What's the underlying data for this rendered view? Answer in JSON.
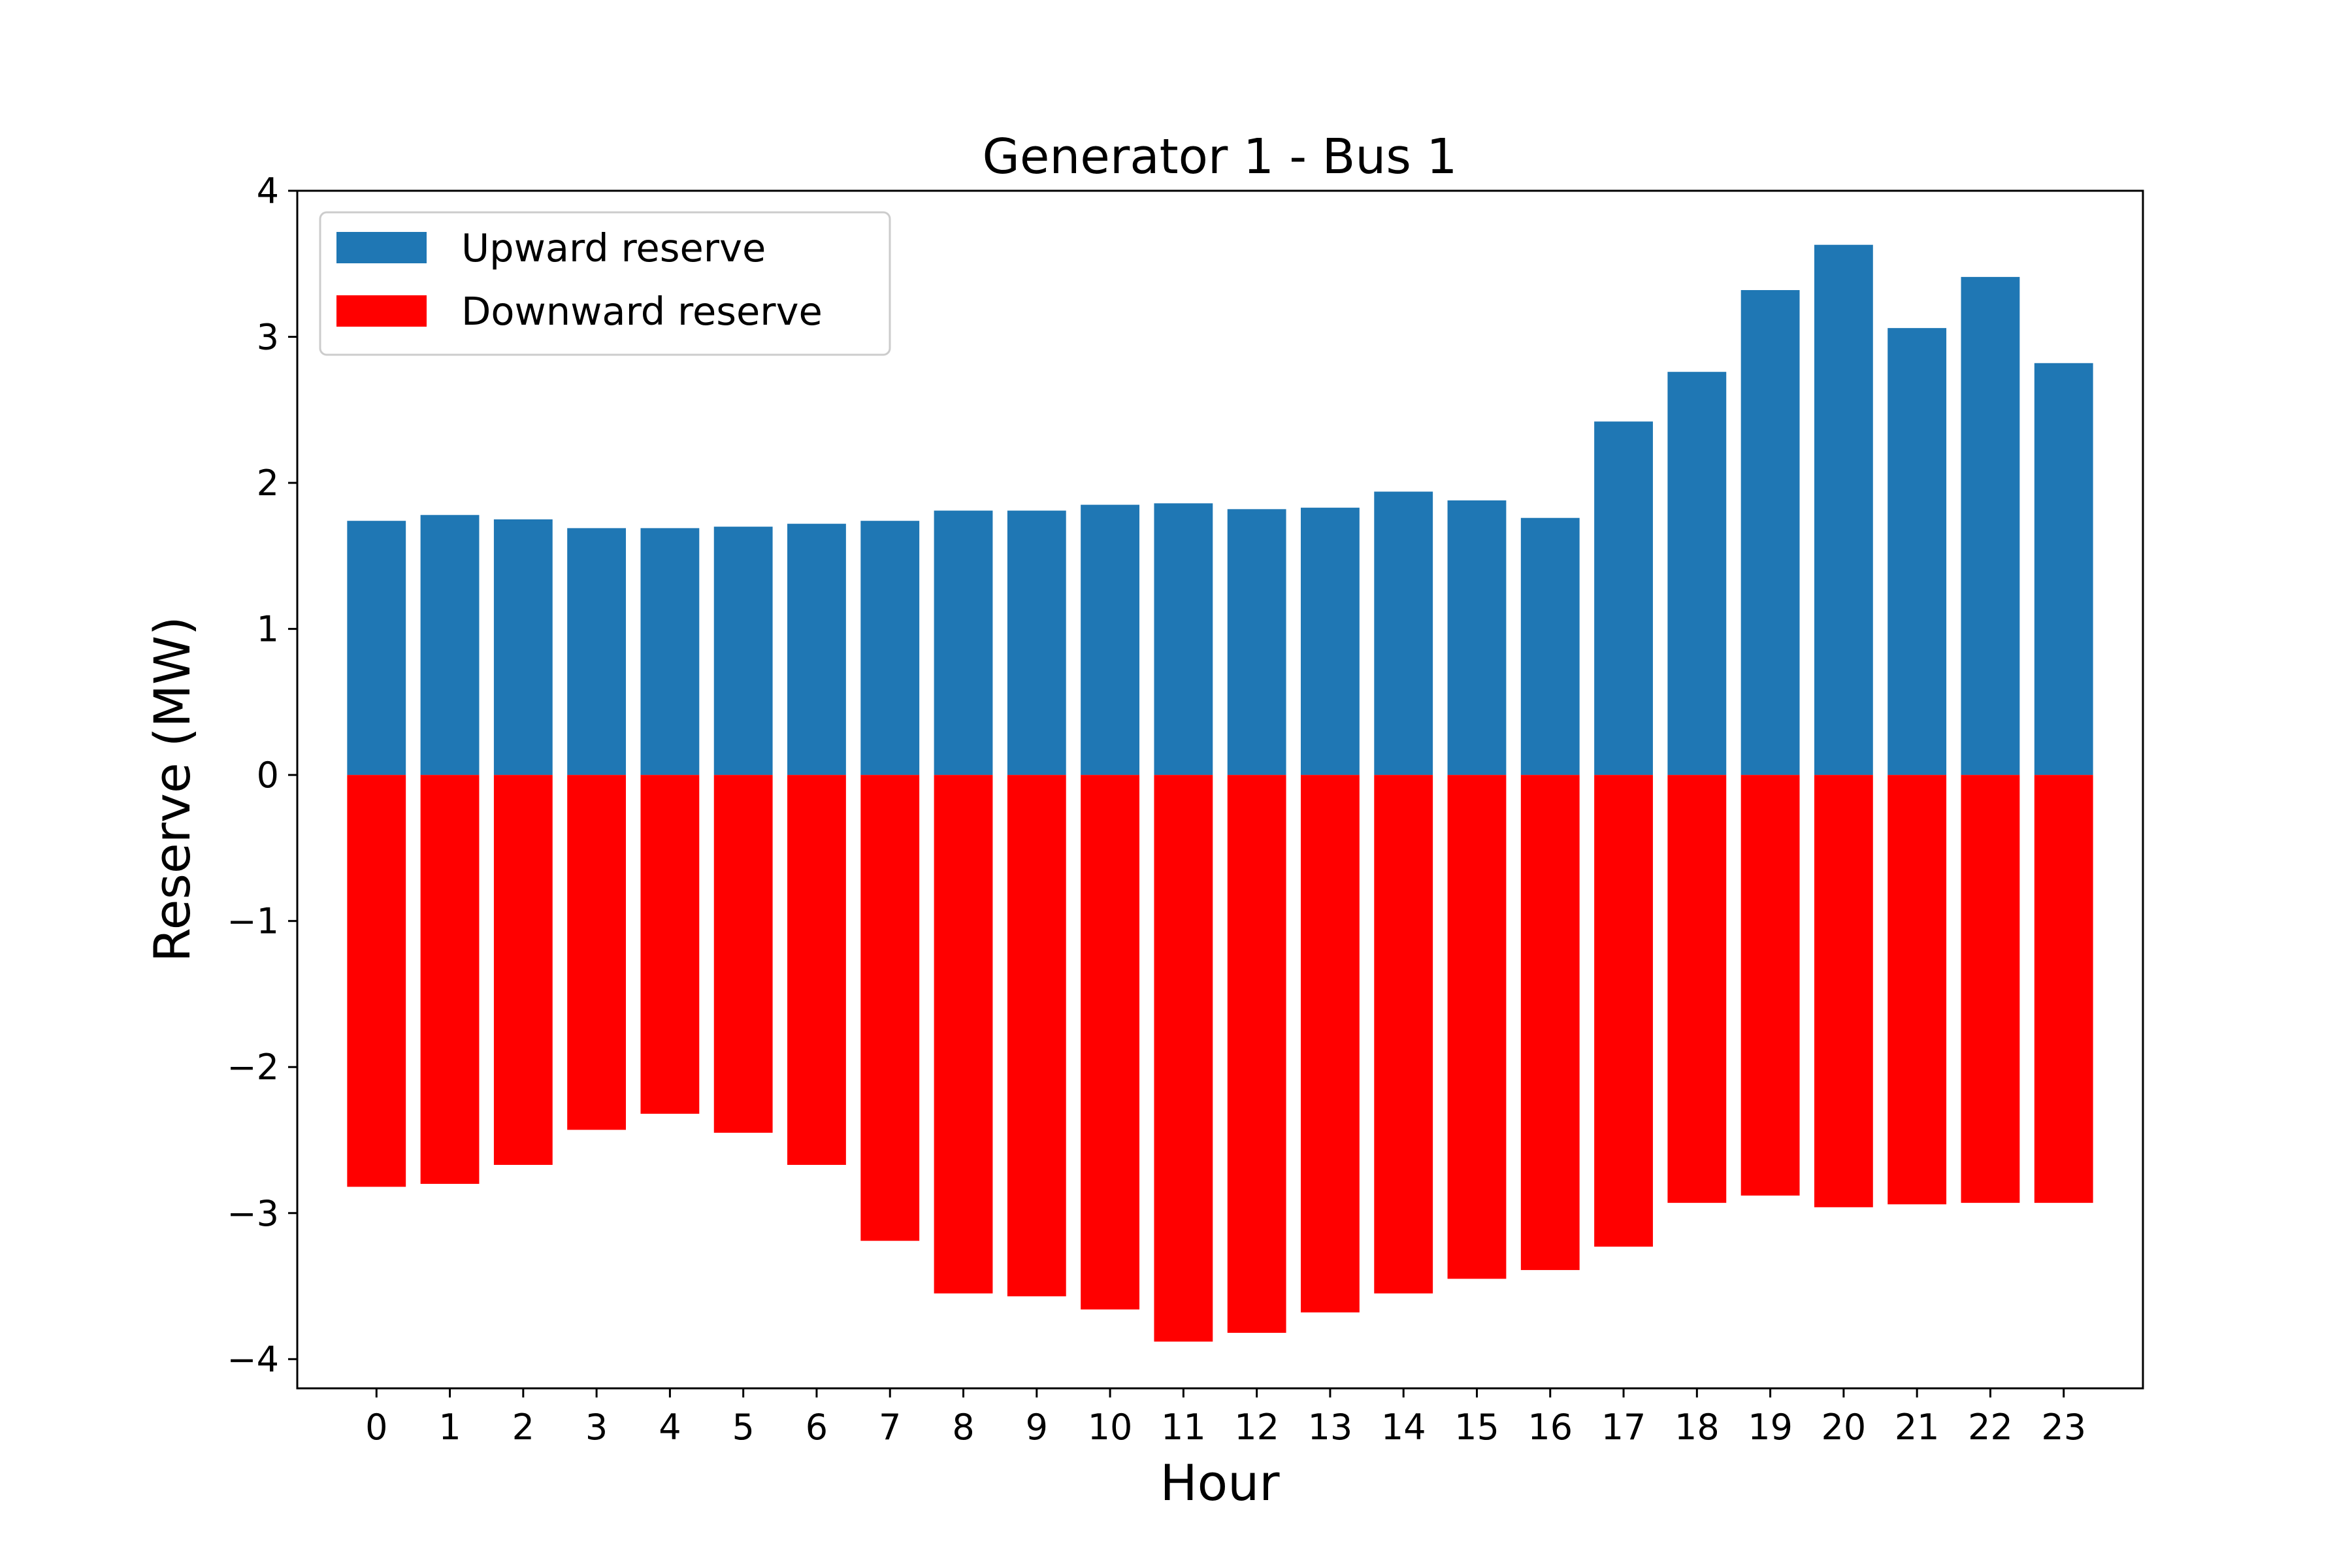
{
  "chart_data": {
    "type": "bar",
    "title": "Generator 1 - Bus 1",
    "xlabel": "Hour",
    "ylabel": "Reserve (MW)",
    "ylim": [
      -4.2,
      4.0
    ],
    "yticks": [
      "4",
      "3",
      "2",
      "1",
      "0",
      "−1",
      "−2",
      "−3",
      "−4"
    ],
    "ytick_values": [
      4,
      3,
      2,
      1,
      0,
      -1,
      -2,
      -3,
      -4
    ],
    "categories": [
      "0",
      "1",
      "2",
      "3",
      "4",
      "5",
      "6",
      "7",
      "8",
      "9",
      "10",
      "11",
      "12",
      "13",
      "14",
      "15",
      "16",
      "17",
      "18",
      "19",
      "20",
      "21",
      "22",
      "23"
    ],
    "series": [
      {
        "name": "Upward reserve",
        "color": "#1f77b4",
        "values": [
          1.74,
          1.78,
          1.75,
          1.69,
          1.69,
          1.7,
          1.72,
          1.74,
          1.81,
          1.81,
          1.85,
          1.86,
          1.82,
          1.83,
          1.94,
          1.88,
          1.76,
          2.42,
          2.76,
          3.32,
          3.63,
          3.06,
          3.41,
          2.82
        ]
      },
      {
        "name": "Downward reserve",
        "color": "#ff0000",
        "values": [
          -2.82,
          -2.8,
          -2.67,
          -2.43,
          -2.32,
          -2.45,
          -2.67,
          -3.19,
          -3.55,
          -3.57,
          -3.66,
          -3.88,
          -3.82,
          -3.68,
          -3.55,
          -3.45,
          -3.39,
          -3.23,
          -2.93,
          -2.88,
          -2.96,
          -2.94,
          -2.93,
          -2.93
        ]
      }
    ],
    "legend_position": "top-left",
    "grid": false
  }
}
